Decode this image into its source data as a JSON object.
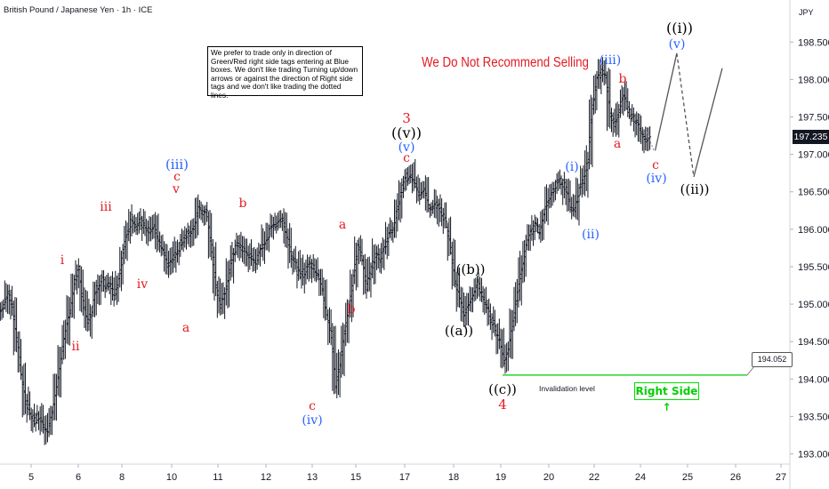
{
  "title": "British Pound / Japanese Yen · 1h · ICE",
  "currency": "JPY",
  "note_text": "We prefer to trade only in direction of Green/Red right side tags entering at Blue boxes. We don't like trading Turning up/down arrows or against the direction of Right side tags and we don't like trading the dotted lines.",
  "headline": "We Do Not Recommend Selling",
  "invalidation_label": "Invalidation level",
  "invalidation_price": "194.052",
  "right_side_label": "Right Side ↑",
  "colors": {
    "red": "#e31b23",
    "blue": "#2962ff",
    "black": "#000000",
    "green": "#00d000"
  },
  "chart_data": {
    "type": "line",
    "ylim": [
      192.85,
      199.2
    ],
    "yticks": [
      "193.000",
      "193.500",
      "194.000",
      "194.500",
      "195.000",
      "195.500",
      "196.000",
      "196.500",
      "197.000",
      "197.500",
      "198.000",
      "198.500"
    ],
    "xticks": [
      "5",
      "6",
      "8",
      "10",
      "11",
      "12",
      "13",
      "15",
      "17",
      "18",
      "19",
      "20",
      "22",
      "24",
      "25",
      "26",
      "27"
    ],
    "current_price": "197.235",
    "invalidation_level": 194.052,
    "series": [
      {
        "values": [
          194.95,
          195.15,
          195.0,
          194.5,
          194.1,
          193.7,
          193.55,
          193.45,
          193.5,
          193.4,
          193.3,
          193.55,
          193.9,
          194.3,
          194.6,
          194.9,
          195.3,
          195.45,
          195.0,
          194.75,
          194.95,
          195.2,
          195.35,
          195.25,
          195.3,
          195.1,
          195.35,
          195.7,
          195.95,
          196.15,
          196.05,
          196.1,
          196.0,
          195.95,
          196.0,
          195.8,
          195.7,
          195.55,
          195.6,
          195.7,
          195.8,
          195.9,
          195.95,
          196.05,
          196.3,
          196.25,
          196.2,
          195.75,
          195.25,
          194.95,
          195.15,
          195.45,
          195.7,
          195.8,
          195.75,
          195.7,
          195.6,
          195.55,
          195.7,
          195.85,
          195.95,
          196.05,
          196.1,
          196.15,
          195.95,
          195.65,
          195.5,
          195.35,
          195.45,
          195.55,
          195.5,
          195.4,
          195.2,
          194.9,
          194.6,
          193.9,
          194.2,
          194.65,
          194.95,
          195.35,
          195.8,
          195.6,
          195.25,
          195.45,
          195.65,
          195.6,
          195.75,
          195.95,
          196.05,
          196.25,
          196.55,
          196.7,
          196.75,
          196.6,
          196.45,
          196.5,
          196.3,
          196.25,
          196.35,
          196.2,
          196.05,
          195.7,
          195.3,
          195.05,
          194.9,
          195.0,
          195.15,
          195.3,
          195.15,
          194.95,
          194.8,
          194.7,
          194.5,
          194.2,
          194.35,
          194.75,
          195.1,
          195.5,
          195.75,
          195.95,
          196.05,
          196.0,
          196.2,
          196.4,
          196.55,
          196.6,
          196.65,
          196.55,
          196.3,
          196.25,
          196.5,
          196.65,
          196.95,
          197.65,
          198.0,
          198.1,
          198.05,
          197.5,
          197.4,
          197.6,
          197.75,
          197.6,
          197.5,
          197.45,
          197.3,
          197.2,
          197.25
        ]
      }
    ],
    "projection": [
      {
        "x": 0.7903,
        "y": 197.05,
        "style": "solid"
      },
      {
        "x": 0.8164,
        "y": 198.35,
        "style": "solid"
      },
      {
        "x": 0.8369,
        "y": 196.7,
        "style": "dashed"
      },
      {
        "x": 0.8712,
        "y": 198.15,
        "style": "solid"
      }
    ],
    "annotations": [
      {
        "text": "i",
        "color": "red",
        "x": 195.7
      },
      {
        "text": "ii",
        "color": "red",
        "x": 194.45
      },
      {
        "text": "iii",
        "color": "red",
        "x": 196.4
      },
      {
        "text": "iv",
        "color": "red",
        "x": 195.3
      },
      {
        "text": "(iii)",
        "color": "blue",
        "x": 196.95
      },
      {
        "text": "c",
        "color": "red",
        "x": 196.75
      },
      {
        "text": "v",
        "color": "red",
        "x": 196.55
      },
      {
        "text": "a",
        "color": "red",
        "x": 194.7
      },
      {
        "text": "b",
        "color": "red",
        "x": 196.35
      },
      {
        "text": "c",
        "color": "red",
        "x": 193.55
      },
      {
        "text": "(iv)",
        "color": "blue",
        "x": 193.4
      },
      {
        "text": "a",
        "color": "red",
        "x": 196.05
      },
      {
        "text": "b",
        "color": "red",
        "x": 194.9
      },
      {
        "text": "3",
        "color": "red",
        "x": 197.55
      },
      {
        "text": "((v))",
        "color": "black",
        "x": 197.3
      },
      {
        "text": "(v)",
        "color": "blue",
        "x": 197.05
      },
      {
        "text": "c",
        "color": "red",
        "x": 196.85
      },
      {
        "text": "((b))",
        "color": "black",
        "x": 195.45
      },
      {
        "text": "((a))",
        "color": "black",
        "x": 194.6
      },
      {
        "text": "((c))",
        "color": "black",
        "x": 193.8
      },
      {
        "text": "4",
        "color": "red",
        "x": 193.55
      },
      {
        "text": "(i)",
        "color": "blue",
        "x": 196.85
      },
      {
        "text": "(ii)",
        "color": "blue",
        "x": 195.95
      },
      {
        "text": "(iii)",
        "color": "blue",
        "x": 198.25
      },
      {
        "text": "b",
        "color": "red",
        "x": 198.0
      },
      {
        "text": "a",
        "color": "red",
        "x": 197.1
      },
      {
        "text": "c",
        "color": "red",
        "x": 196.85
      },
      {
        "text": "(iv)",
        "color": "blue",
        "x": 196.65
      },
      {
        "text": "((i))",
        "color": "black",
        "x": 198.7
      },
      {
        "text": "(v)",
        "color": "blue",
        "x": 198.5
      },
      {
        "text": "((ii))",
        "color": "black",
        "x": 196.45
      }
    ]
  }
}
